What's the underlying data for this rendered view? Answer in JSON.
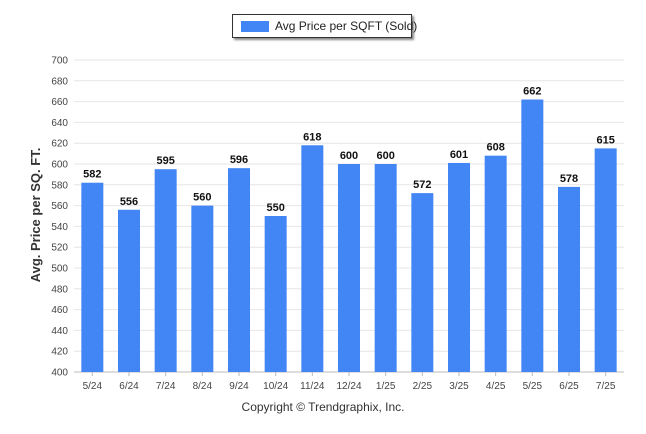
{
  "chart_data": {
    "type": "bar",
    "legend": {
      "label": "Avg Price per SQFT (Sold)",
      "placement": "top-center"
    },
    "ylabel": "Avg. Price per SQ. FT.",
    "xlabel": "",
    "ylim": [
      400,
      700
    ],
    "ytick_step": 20,
    "yticks": [
      "400",
      "420",
      "440",
      "460",
      "480",
      "500",
      "520",
      "540",
      "560",
      "580",
      "600",
      "620",
      "640",
      "660",
      "680",
      "700"
    ],
    "grid": true,
    "categories": [
      "5/24",
      "6/24",
      "7/24",
      "8/24",
      "9/24",
      "10/24",
      "11/24",
      "12/24",
      "1/25",
      "2/25",
      "3/25",
      "4/25",
      "5/25",
      "6/25",
      "7/25"
    ],
    "series": [
      {
        "name": "Avg Price per SQFT (Sold)",
        "values": [
          582,
          556,
          595,
          560,
          596,
          550,
          618,
          600,
          600,
          572,
          601,
          608,
          662,
          578,
          615
        ]
      }
    ],
    "bar_color": "#4285f4"
  },
  "footer": "Copyright © Trendgraphix, Inc."
}
